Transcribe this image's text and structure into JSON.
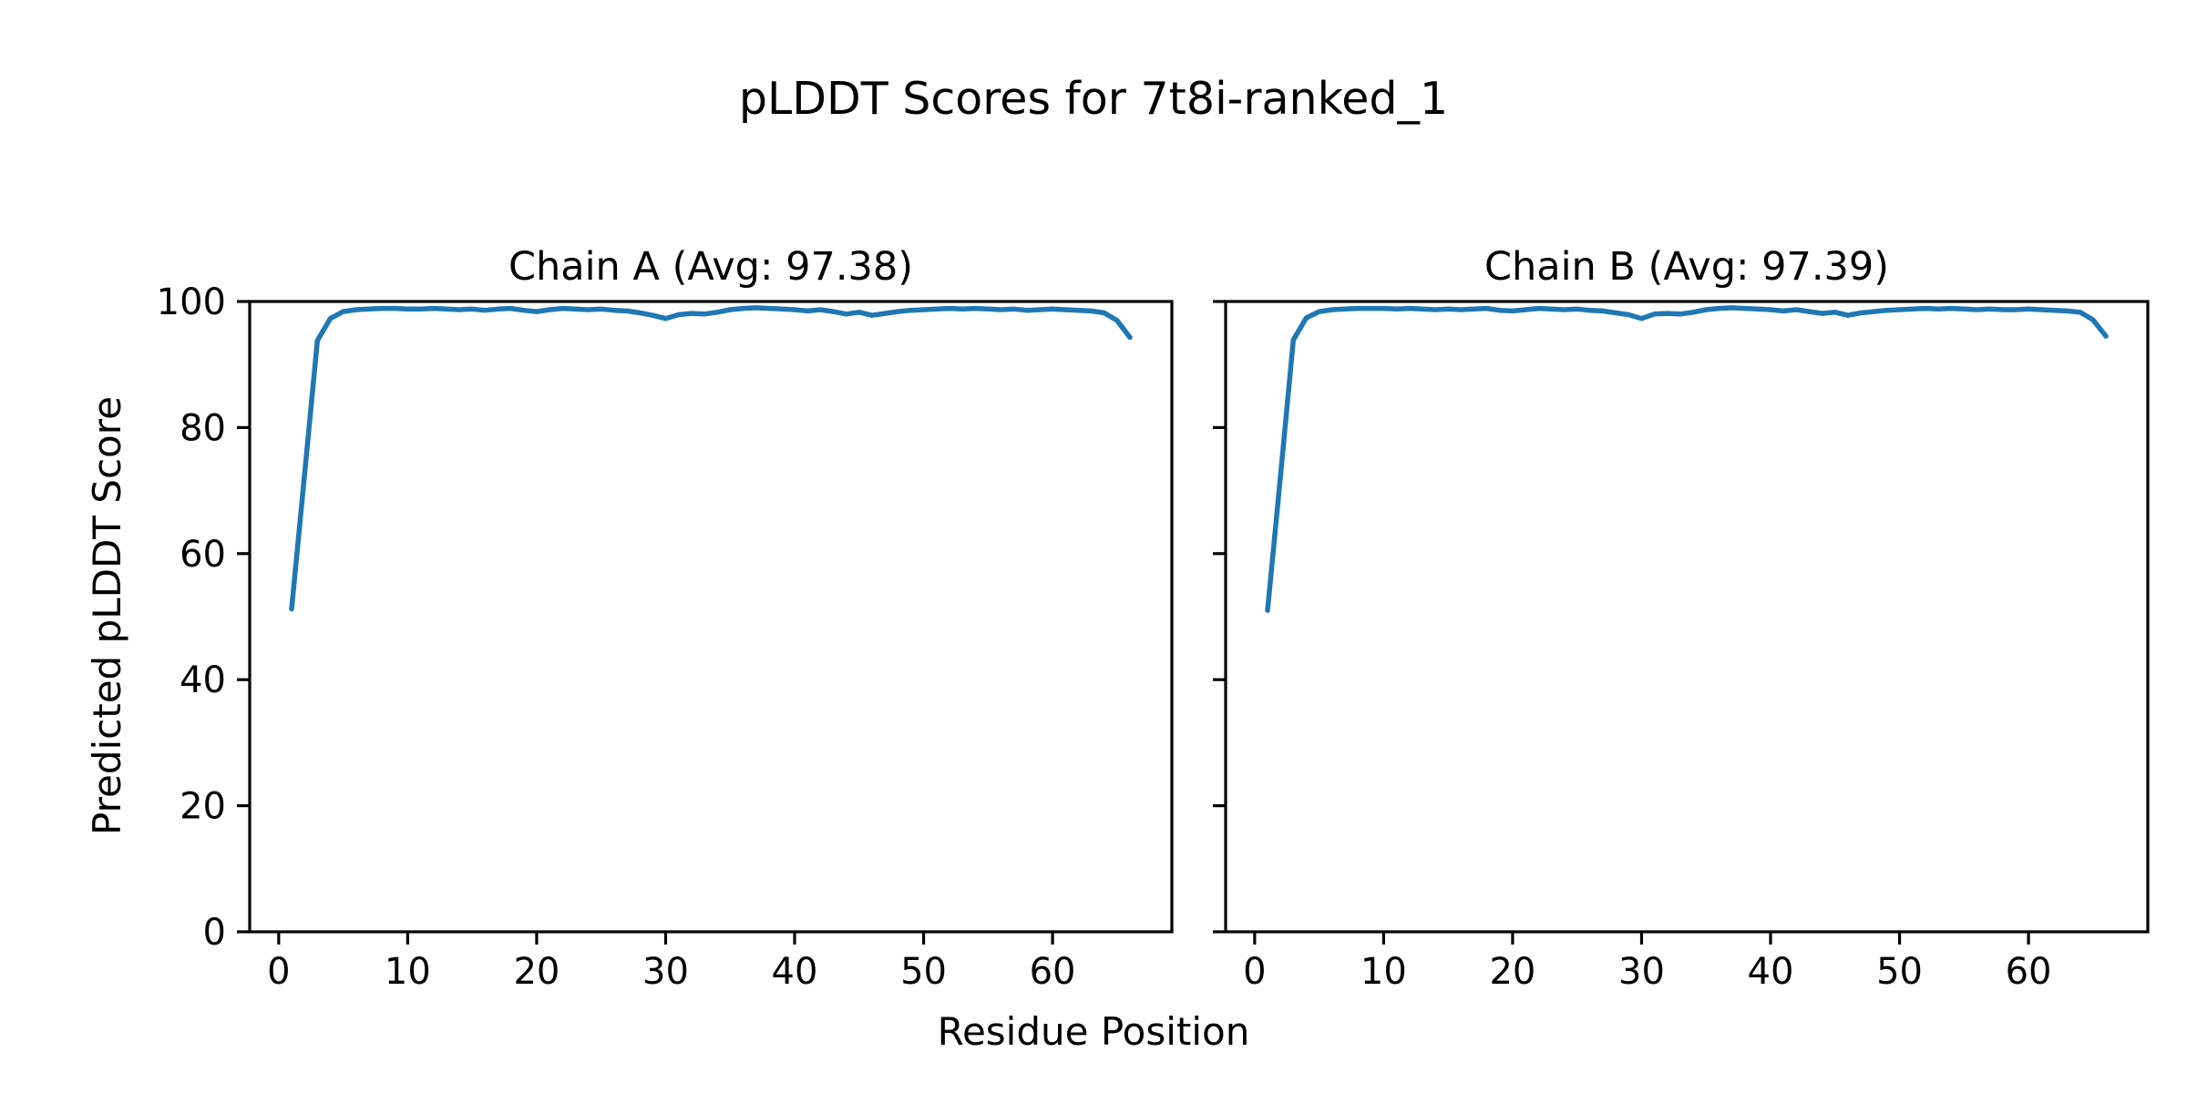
{
  "figure": {
    "suptitle": "pLDDT Scores for 7t8i-ranked_1",
    "xlabel": "Residue Position",
    "ylabel": "Predicted pLDDT Score"
  },
  "style": {
    "line_color": "#1f77b4",
    "spine_color": "#000000",
    "background_color": "#ffffff",
    "text_color": "#000000"
  },
  "chart_data": [
    {
      "type": "line",
      "name": "chain-a",
      "title": "Chain A (Avg: 97.38)",
      "avg_plddt": 97.38,
      "line_color": "#1f77b4",
      "xlim": [
        -2.25,
        69.25
      ],
      "ylim": [
        0,
        100
      ],
      "xticks": [
        0,
        10,
        20,
        30,
        40,
        50,
        60
      ],
      "yticks": [
        0,
        20,
        40,
        60,
        80,
        100
      ],
      "show_ytick_labels": true,
      "grid": false,
      "legend": "none",
      "x": [
        1,
        2,
        3,
        4,
        5,
        6,
        7,
        8,
        9,
        10,
        11,
        12,
        13,
        14,
        15,
        16,
        17,
        18,
        19,
        20,
        21,
        22,
        23,
        24,
        25,
        26,
        27,
        28,
        29,
        30,
        31,
        32,
        33,
        34,
        35,
        36,
        37,
        38,
        39,
        40,
        41,
        42,
        43,
        44,
        45,
        46,
        47,
        48,
        49,
        50,
        51,
        52,
        53,
        54,
        55,
        56,
        57,
        58,
        59,
        60,
        61,
        62,
        63,
        64,
        65,
        66
      ],
      "y": [
        51.2,
        72.5,
        93.8,
        97.3,
        98.4,
        98.7,
        98.8,
        98.9,
        98.9,
        98.8,
        98.8,
        98.9,
        98.8,
        98.7,
        98.8,
        98.6,
        98.8,
        98.9,
        98.6,
        98.4,
        98.7,
        98.9,
        98.8,
        98.7,
        98.8,
        98.6,
        98.5,
        98.2,
        97.8,
        97.3,
        97.9,
        98.1,
        98.0,
        98.3,
        98.7,
        98.9,
        99.0,
        98.9,
        98.8,
        98.7,
        98.5,
        98.7,
        98.4,
        98.0,
        98.3,
        97.8,
        98.1,
        98.4,
        98.6,
        98.7,
        98.8,
        98.9,
        98.8,
        98.9,
        98.8,
        98.7,
        98.8,
        98.6,
        98.7,
        98.8,
        98.7,
        98.6,
        98.5,
        98.2,
        97.0,
        94.3
      ]
    },
    {
      "type": "line",
      "name": "chain-b",
      "title": "Chain B (Avg: 97.39)",
      "avg_plddt": 97.39,
      "line_color": "#1f77b4",
      "xlim": [
        -2.25,
        69.25
      ],
      "ylim": [
        0,
        100
      ],
      "xticks": [
        0,
        10,
        20,
        30,
        40,
        50,
        60
      ],
      "yticks": [
        0,
        20,
        40,
        60,
        80,
        100
      ],
      "show_ytick_labels": false,
      "grid": false,
      "legend": "none",
      "x": [
        1,
        2,
        3,
        4,
        5,
        6,
        7,
        8,
        9,
        10,
        11,
        12,
        13,
        14,
        15,
        16,
        17,
        18,
        19,
        20,
        21,
        22,
        23,
        24,
        25,
        26,
        27,
        28,
        29,
        30,
        31,
        32,
        33,
        34,
        35,
        36,
        37,
        38,
        39,
        40,
        41,
        42,
        43,
        44,
        45,
        46,
        47,
        48,
        49,
        50,
        51,
        52,
        53,
        54,
        55,
        56,
        57,
        58,
        59,
        60,
        61,
        62,
        63,
        64,
        65,
        66
      ],
      "y": [
        51.0,
        72.3,
        93.9,
        97.4,
        98.4,
        98.7,
        98.8,
        98.9,
        98.9,
        98.9,
        98.8,
        98.9,
        98.8,
        98.7,
        98.8,
        98.7,
        98.8,
        98.9,
        98.6,
        98.5,
        98.7,
        98.9,
        98.8,
        98.7,
        98.8,
        98.6,
        98.5,
        98.2,
        97.9,
        97.3,
        98.0,
        98.1,
        98.0,
        98.3,
        98.7,
        98.9,
        99.0,
        98.9,
        98.8,
        98.7,
        98.5,
        98.7,
        98.4,
        98.1,
        98.3,
        97.8,
        98.2,
        98.4,
        98.6,
        98.7,
        98.8,
        98.9,
        98.8,
        98.9,
        98.8,
        98.7,
        98.8,
        98.7,
        98.7,
        98.8,
        98.7,
        98.6,
        98.5,
        98.3,
        97.1,
        94.5
      ]
    }
  ]
}
